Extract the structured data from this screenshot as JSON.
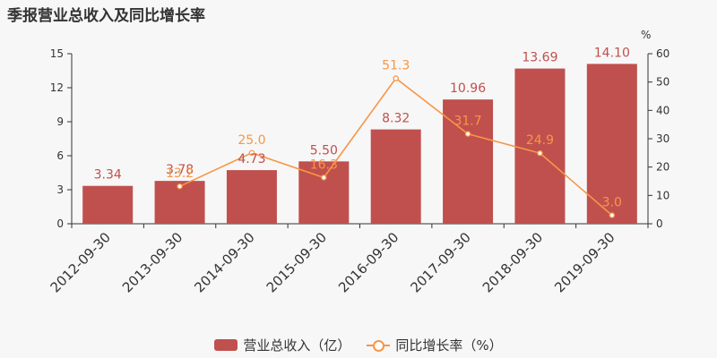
{
  "chart_data": {
    "type": "bar",
    "title": "季报营业总收入及同比增长率",
    "categories": [
      "2012-09-30",
      "2013-09-30",
      "2014-09-30",
      "2015-09-30",
      "2016-09-30",
      "2017-09-30",
      "2018-09-30",
      "2019-09-30"
    ],
    "series": [
      {
        "name": "营业总收入（亿）",
        "type": "bar",
        "axis": "left",
        "color": "#c0504d",
        "values": [
          3.34,
          3.78,
          4.73,
          5.5,
          8.32,
          10.96,
          13.69,
          14.1
        ],
        "labels": [
          "3.34",
          "3.78",
          "4.73",
          "5.50",
          "8.32",
          "10.96",
          "13.69",
          "14.10"
        ]
      },
      {
        "name": "同比增长率（%）",
        "type": "line",
        "axis": "right",
        "color": "#f79646",
        "values": [
          null,
          13.2,
          25.0,
          16.3,
          51.3,
          31.7,
          24.9,
          3.0
        ],
        "labels": [
          "",
          "13.2",
          "25.0",
          "16.3",
          "51.3",
          "31.7",
          "24.9",
          "3.0"
        ]
      }
    ],
    "y_left": {
      "ylim": [
        0,
        15
      ],
      "ticks": [
        "0",
        "3",
        "6",
        "9",
        "12",
        "15"
      ]
    },
    "y_right": {
      "ylim": [
        0,
        60
      ],
      "ticks": [
        "0",
        "10",
        "20",
        "30",
        "40",
        "50",
        "60"
      ],
      "unit": "%"
    },
    "legend_position": "bottom-center",
    "grid": false
  }
}
